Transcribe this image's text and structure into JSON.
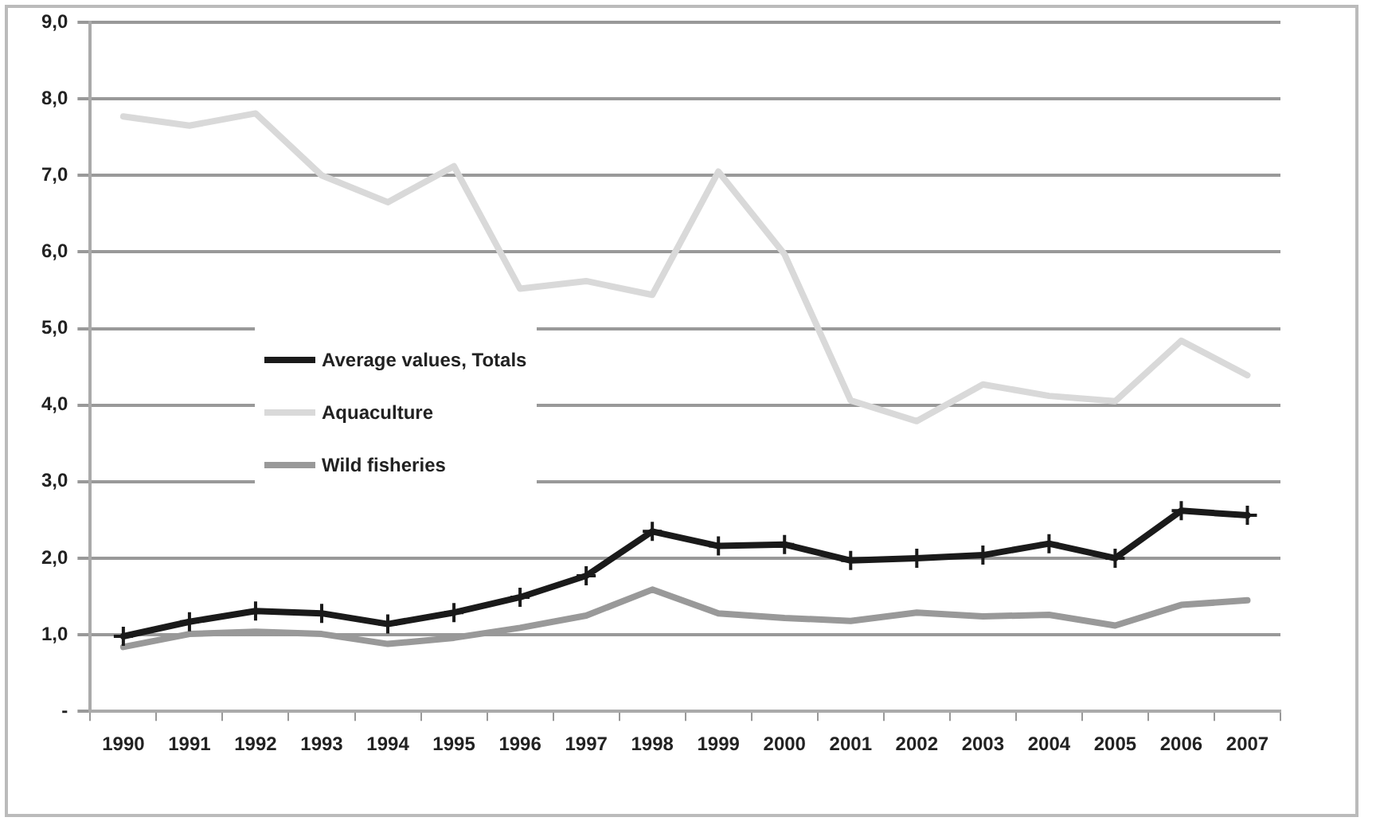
{
  "chart_data": {
    "type": "line",
    "categories": [
      "1990",
      "1991",
      "1992",
      "1993",
      "1994",
      "1995",
      "1996",
      "1997",
      "1998",
      "1999",
      "2000",
      "2001",
      "2002",
      "2003",
      "2004",
      "2005",
      "2006",
      "2007"
    ],
    "series": [
      {
        "name": "Average values, Totals",
        "color": "#1a1a1a",
        "marker": "cross",
        "values": [
          0.98,
          1.17,
          1.31,
          1.28,
          1.14,
          1.29,
          1.49,
          1.77,
          2.35,
          2.16,
          2.18,
          1.97,
          2.0,
          2.04,
          2.19,
          2.0,
          2.62,
          2.56
        ]
      },
      {
        "name": "Aquaculture",
        "color": "#d9d9d9",
        "marker": "none",
        "values": [
          7.77,
          7.65,
          7.81,
          7.0,
          6.65,
          7.12,
          5.52,
          5.62,
          5.44,
          7.05,
          5.97,
          4.06,
          3.79,
          4.27,
          4.12,
          4.05,
          4.84,
          4.39
        ]
      },
      {
        "name": "Wild fisheries",
        "color": "#999999",
        "marker": "none",
        "values": [
          0.84,
          1.01,
          1.04,
          1.01,
          0.88,
          0.96,
          1.09,
          1.25,
          1.59,
          1.28,
          1.22,
          1.18,
          1.29,
          1.24,
          1.26,
          1.12,
          1.39,
          1.45
        ]
      }
    ],
    "ylim": [
      0,
      9
    ],
    "yticks": [
      {
        "value": 0,
        "label": "-"
      },
      {
        "value": 1,
        "label": "1,0"
      },
      {
        "value": 2,
        "label": "2,0"
      },
      {
        "value": 3,
        "label": "3,0"
      },
      {
        "value": 4,
        "label": "4,0"
      },
      {
        "value": 5,
        "label": "5,0"
      },
      {
        "value": 6,
        "label": "6,0"
      },
      {
        "value": 7,
        "label": "7,0"
      },
      {
        "value": 8,
        "label": "8,0"
      },
      {
        "value": 9,
        "label": "9,0"
      }
    ],
    "grid": "y",
    "legend": "center left",
    "line_style": "solid"
  }
}
